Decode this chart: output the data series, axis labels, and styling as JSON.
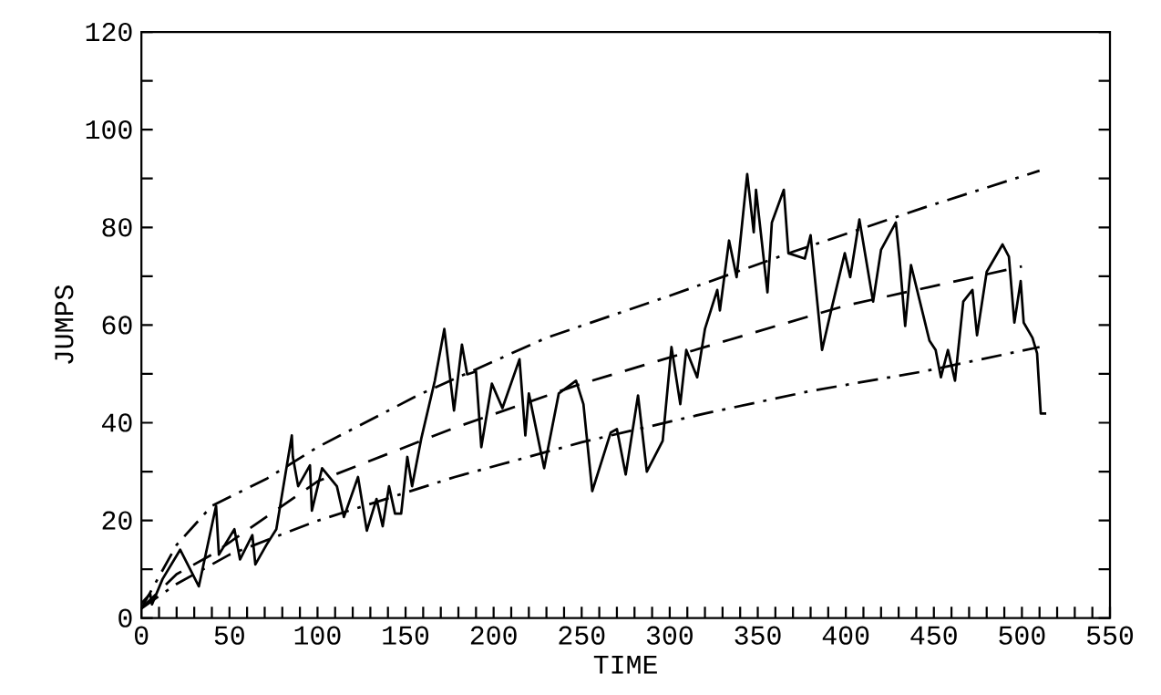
{
  "chart_data": {
    "type": "line",
    "xlabel": "TIME",
    "ylabel": "JUMPS",
    "xlim": [
      0,
      550
    ],
    "ylim": [
      0,
      120
    ],
    "xticks": [
      0,
      {
        "value": 10,
        "label": null
      },
      {
        "value": 20,
        "label": null
      },
      {
        "value": 30,
        "label": null
      },
      {
        "value": 40,
        "label": null
      },
      50,
      {
        "value": 60,
        "label": null
      },
      {
        "value": 70,
        "label": null
      },
      {
        "value": 80,
        "label": null
      },
      {
        "value": 90,
        "label": null
      },
      100,
      {
        "value": 110,
        "label": null
      },
      {
        "value": 120,
        "label": null
      },
      {
        "value": 130,
        "label": null
      },
      {
        "value": 140,
        "label": null
      },
      150,
      {
        "value": 160,
        "label": null
      },
      {
        "value": 170,
        "label": null
      },
      {
        "value": 180,
        "label": null
      },
      {
        "value": 190,
        "label": null
      },
      200,
      {
        "value": 210,
        "label": null
      },
      {
        "value": 220,
        "label": null
      },
      {
        "value": 230,
        "label": null
      },
      {
        "value": 240,
        "label": null
      },
      250,
      {
        "value": 260,
        "label": null
      },
      {
        "value": 270,
        "label": null
      },
      {
        "value": 280,
        "label": null
      },
      {
        "value": 290,
        "label": null
      },
      300,
      {
        "value": 310,
        "label": null
      },
      {
        "value": 320,
        "label": null
      },
      {
        "value": 330,
        "label": null
      },
      {
        "value": 340,
        "label": null
      },
      350,
      {
        "value": 360,
        "label": null
      },
      {
        "value": 370,
        "label": null
      },
      {
        "value": 380,
        "label": null
      },
      {
        "value": 390,
        "label": null
      },
      400,
      {
        "value": 410,
        "label": null
      },
      {
        "value": 420,
        "label": null
      },
      {
        "value": 430,
        "label": null
      },
      {
        "value": 440,
        "label": null
      },
      450,
      {
        "value": 460,
        "label": null
      },
      {
        "value": 470,
        "label": null
      },
      {
        "value": 480,
        "label": null
      },
      {
        "value": 490,
        "label": null
      },
      500,
      {
        "value": 510,
        "label": null
      },
      {
        "value": 520,
        "label": null
      },
      {
        "value": 530,
        "label": null
      },
      {
        "value": 540,
        "label": null
      },
      550
    ],
    "yticks": [
      0,
      {
        "value": 10,
        "label": null
      },
      20,
      {
        "value": 30,
        "label": null
      },
      40,
      {
        "value": 50,
        "label": null
      },
      60,
      {
        "value": 70,
        "label": null
      },
      80,
      {
        "value": 90,
        "label": null
      },
      100,
      {
        "value": 110,
        "label": null
      },
      120
    ],
    "grid": false,
    "marker": "none",
    "series": [
      {
        "color": "#000000",
        "line_style": "solid",
        "x": [
          0,
          5,
          6,
          12,
          22,
          32.6,
          42.4,
          44,
          52.8,
          56,
          63,
          64.7,
          71,
          76.6,
          85.4,
          86,
          89,
          95.7,
          96.8,
          102.6,
          111,
          115,
          123,
          128,
          133.5,
          137,
          140.6,
          144,
          147.5,
          151,
          153.7,
          159,
          166.6,
          172,
          177.5,
          182,
          185,
          190,
          193,
          199,
          205,
          214.7,
          218,
          220,
          228.7,
          237,
          246.8,
          251,
          256,
          266.5,
          270,
          275,
          282,
          287,
          296,
          301,
          306,
          309.4,
          315.6,
          320,
          327,
          328.5,
          333.7,
          338,
          344,
          347.7,
          349,
          355.5,
          358,
          364.8,
          367.4,
          376.7,
          380,
          386.5,
          392,
          399.4,
          402.5,
          407.7,
          415.5,
          420,
          428.4,
          430.5,
          433.7,
          437,
          447.5,
          451,
          454,
          458,
          462,
          466.7,
          471.9,
          474.5,
          480,
          489,
          492.6,
          495.7,
          499.3,
          501,
          506,
          508.6,
          510.7,
          513.8
        ],
        "values": [
          3,
          5,
          2.8,
          8,
          14,
          6.5,
          23,
          13,
          18.2,
          12,
          17,
          11,
          15,
          18.2,
          37.4,
          33,
          27,
          31.3,
          22,
          30.7,
          27,
          20.7,
          28.9,
          17.9,
          24.4,
          18.8,
          27,
          21.4,
          21.4,
          33,
          27,
          36.9,
          48.6,
          59.2,
          42.5,
          56,
          49.9,
          50.5,
          35,
          48,
          43,
          53,
          37.4,
          46,
          30.7,
          46,
          48.6,
          43.8,
          26,
          38,
          38.7,
          29.4,
          45.6,
          30,
          36.3,
          55.5,
          43.8,
          54.9,
          49.3,
          59.2,
          67.2,
          63,
          77.3,
          69.8,
          90.9,
          79,
          87.7,
          66.7,
          81,
          87.7,
          74.7,
          73.6,
          78.4,
          54.9,
          63.5,
          74.7,
          69.8,
          81.6,
          64.8,
          75.4,
          81,
          73.6,
          59.8,
          72.3,
          56.8,
          54.9,
          49.3,
          54.9,
          48.6,
          64.8,
          67.2,
          57.9,
          70.9,
          76.5,
          74,
          60.5,
          69,
          60.5,
          57.4,
          54.2,
          41.9,
          41.9
        ]
      },
      {
        "color": "#000000",
        "line_style": "dashdot",
        "x": [
          0,
          20,
          40,
          71,
          100,
          158,
          230,
          300,
          370,
          444,
          510
        ],
        "values": [
          2,
          15,
          23,
          28.5,
          35,
          45.8,
          57.4,
          66,
          75,
          84,
          91.6
        ]
      },
      {
        "color": "#000000",
        "line_style": "dashed",
        "x": [
          0,
          20,
          40,
          100,
          178,
          250,
          334,
          400,
          459,
          500
        ],
        "values": [
          2,
          9,
          13,
          28,
          39,
          48,
          57,
          64,
          68.7,
          72
        ]
      },
      {
        "color": "#000000",
        "line_style": "dashdot",
        "x": [
          0,
          20,
          50,
          98,
          178,
          250,
          320,
          380,
          444,
          510
        ],
        "values": [
          2,
          7,
          13,
          19.7,
          28.9,
          36,
          41.9,
          46.5,
          50.5,
          55.5
        ]
      }
    ]
  }
}
